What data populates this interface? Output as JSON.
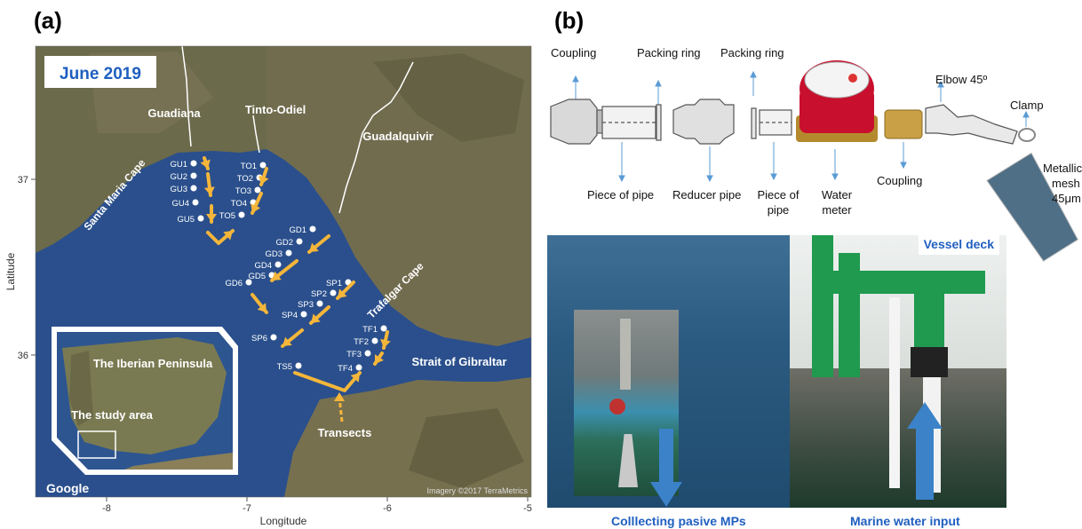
{
  "panel_a": {
    "label": "(a)",
    "date_badge": "June 2019",
    "ylabel": "Latitude",
    "xlabel": "Longitude",
    "x_ticks": [
      "-8",
      "-7",
      "-6",
      "-5"
    ],
    "y_ticks": [
      "37",
      "36"
    ],
    "rivers": [
      "Guadiana",
      "Tinto-Odiel",
      "Guadalquivir"
    ],
    "places": {
      "santa_maria": "Santa Maria Cape",
      "trafalgar": "Trafalgar Cape",
      "gibraltar": "Strait of Gibraltar",
      "transects": "Transects"
    },
    "inset": {
      "peninsula": "The Iberian Peninsula",
      "study_area": "The study area"
    },
    "google": "Google",
    "imagery": "Imagery ©2017 TerraMetrics",
    "stations": {
      "GU": [
        "GU1",
        "GU2",
        "GU3",
        "GU4",
        "GU5"
      ],
      "TO": [
        "TO1",
        "TO2",
        "TO3",
        "TO4",
        "TO5"
      ],
      "GD": [
        "GD1",
        "GD2",
        "GD3",
        "GD4",
        "GD5",
        "GD6"
      ],
      "SP": [
        "SP1",
        "SP2",
        "SP3",
        "SP4",
        "SP6"
      ],
      "TS": [
        "TS5"
      ],
      "TF": [
        "TF1",
        "TF2",
        "TF3",
        "TF4"
      ]
    },
    "colors": {
      "sea": "#2a4f8c",
      "land": "#6e6a4e",
      "arrow": "#f5b63a",
      "badge_text": "#1f5fc0"
    }
  },
  "panel_b": {
    "label": "(b)",
    "parts_top": [
      "Coupling",
      "Packing ring",
      "Packing ring",
      "Elbow 45º",
      "Clamp"
    ],
    "parts_bottom": {
      "piece_of_pipe": "Piece of pipe",
      "reducer_pipe": "Reducer pipe",
      "piece_of_pipe_2a": "Piece of",
      "piece_of_pipe_2b": "pipe",
      "water_a": "Water",
      "water_b": "meter",
      "coupling": "Coupling",
      "mesh_a": "Metallic",
      "mesh_b": "mesh",
      "mesh_c": "45μm"
    },
    "vessel_deck": "Vessel deck",
    "caption_left": "Colllecting pasive MPs",
    "caption_right": "Marine water input",
    "colors": {
      "caption": "#1f5fc0",
      "pipe": "#1f9a4f",
      "meter": "#c8102e"
    }
  }
}
